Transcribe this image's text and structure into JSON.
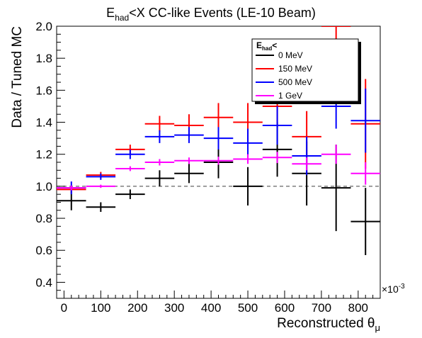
{
  "chart_data": {
    "type": "scatter",
    "title_main": "E",
    "title_sub": "had",
    "title_rest": "<X CC-like Events (LE-10 Beam)",
    "xlabel_main": "Reconstructed θ",
    "xlabel_sub": "μ",
    "ylabel": "Data / Tuned MC",
    "x_multiplier_label": "×10",
    "x_multiplier_exp": "-3",
    "xlim": [
      -20,
      860
    ],
    "ylim": [
      0.3,
      2.0
    ],
    "x_ticks": [
      0,
      100,
      200,
      300,
      400,
      500,
      600,
      700,
      800
    ],
    "x_tick_labels": [
      "0",
      "100",
      "200",
      "300",
      "400",
      "500",
      "600",
      "700",
      "800"
    ],
    "y_ticks": [
      0.4,
      0.6,
      0.8,
      1.0,
      1.2,
      1.4,
      1.6,
      1.8,
      2.0
    ],
    "y_tick_labels": [
      "0.4",
      "0.6",
      "0.8",
      "1.0",
      "1.2",
      "1.4",
      "1.6",
      "1.8",
      "2.0"
    ],
    "reference_line": 1.0,
    "legend": {
      "title_main": "E",
      "title_sub": "had",
      "title_rest": "<",
      "position": "top-right"
    },
    "series": [
      {
        "name": "0 MeV",
        "color": "#000000",
        "points": [
          {
            "x": 20,
            "xerr": 40,
            "y": 0.91,
            "yerr": 0.06
          },
          {
            "x": 100,
            "xerr": 40,
            "y": 0.87,
            "yerr": 0.03
          },
          {
            "x": 180,
            "xerr": 40,
            "y": 0.95,
            "yerr": 0.03
          },
          {
            "x": 260,
            "xerr": 40,
            "y": 1.05,
            "yerr": 0.05
          },
          {
            "x": 340,
            "xerr": 40,
            "y": 1.08,
            "yerr": 0.06
          },
          {
            "x": 420,
            "xerr": 40,
            "y": 1.15,
            "yerr": 0.1
          },
          {
            "x": 500,
            "xerr": 40,
            "y": 1.0,
            "yerr": 0.12
          },
          {
            "x": 580,
            "xerr": 40,
            "y": 1.23,
            "yerr": 0.17
          },
          {
            "x": 660,
            "xerr": 40,
            "y": 1.08,
            "yerr": 0.2
          },
          {
            "x": 740,
            "xerr": 40,
            "y": 0.99,
            "yerr": 0.27
          },
          {
            "x": 820,
            "xerr": 40,
            "y": 0.78,
            "yerr": 0.21
          }
        ]
      },
      {
        "name": "150 MeV",
        "color": "#ff0000",
        "points": [
          {
            "x": 20,
            "xerr": 40,
            "y": 0.98,
            "yerr": 0.02
          },
          {
            "x": 100,
            "xerr": 40,
            "y": 1.07,
            "yerr": 0.02
          },
          {
            "x": 180,
            "xerr": 40,
            "y": 1.23,
            "yerr": 0.03
          },
          {
            "x": 260,
            "xerr": 40,
            "y": 1.39,
            "yerr": 0.05
          },
          {
            "x": 340,
            "xerr": 40,
            "y": 1.38,
            "yerr": 0.07
          },
          {
            "x": 420,
            "xerr": 40,
            "y": 1.43,
            "yerr": 0.09
          },
          {
            "x": 500,
            "xerr": 40,
            "y": 1.4,
            "yerr": 0.12
          },
          {
            "x": 580,
            "xerr": 40,
            "y": 1.5,
            "yerr": 0.13
          },
          {
            "x": 660,
            "xerr": 40,
            "y": 1.31,
            "yerr": 0.16
          },
          {
            "x": 740,
            "xerr": 40,
            "y": 2.0,
            "yerr": 0.28
          },
          {
            "x": 820,
            "xerr": 40,
            "y": 1.39,
            "yerr": 0.28
          }
        ]
      },
      {
        "name": "500 MeV",
        "color": "#0000ff",
        "points": [
          {
            "x": 20,
            "xerr": 40,
            "y": 0.99,
            "yerr": 0.04
          },
          {
            "x": 100,
            "xerr": 40,
            "y": 1.06,
            "yerr": 0.02
          },
          {
            "x": 180,
            "xerr": 40,
            "y": 1.2,
            "yerr": 0.03
          },
          {
            "x": 260,
            "xerr": 40,
            "y": 1.31,
            "yerr": 0.04
          },
          {
            "x": 340,
            "xerr": 40,
            "y": 1.32,
            "yerr": 0.05
          },
          {
            "x": 420,
            "xerr": 40,
            "y": 1.3,
            "yerr": 0.07
          },
          {
            "x": 500,
            "xerr": 40,
            "y": 1.27,
            "yerr": 0.09
          },
          {
            "x": 580,
            "xerr": 40,
            "y": 1.38,
            "yerr": 0.12
          },
          {
            "x": 660,
            "xerr": 40,
            "y": 1.19,
            "yerr": 0.12
          },
          {
            "x": 740,
            "xerr": 40,
            "y": 1.5,
            "yerr": 0.14
          },
          {
            "x": 820,
            "xerr": 40,
            "y": 1.41,
            "yerr": 0.2
          }
        ]
      },
      {
        "name": "1 GeV",
        "color": "#ff00ff",
        "points": [
          {
            "x": 20,
            "xerr": 40,
            "y": 0.99,
            "yerr": 0.015
          },
          {
            "x": 100,
            "xerr": 40,
            "y": 1.0,
            "yerr": 0.01
          },
          {
            "x": 180,
            "xerr": 40,
            "y": 1.11,
            "yerr": 0.015
          },
          {
            "x": 260,
            "xerr": 40,
            "y": 1.15,
            "yerr": 0.02
          },
          {
            "x": 340,
            "xerr": 40,
            "y": 1.16,
            "yerr": 0.02
          },
          {
            "x": 420,
            "xerr": 40,
            "y": 1.16,
            "yerr": 0.025
          },
          {
            "x": 500,
            "xerr": 40,
            "y": 1.17,
            "yerr": 0.03
          },
          {
            "x": 580,
            "xerr": 40,
            "y": 1.18,
            "yerr": 0.035
          },
          {
            "x": 660,
            "xerr": 40,
            "y": 1.14,
            "yerr": 0.04
          },
          {
            "x": 740,
            "xerr": 40,
            "y": 1.2,
            "yerr": 0.06
          },
          {
            "x": 820,
            "xerr": 40,
            "y": 1.08,
            "yerr": 0.07
          }
        ]
      }
    ]
  }
}
